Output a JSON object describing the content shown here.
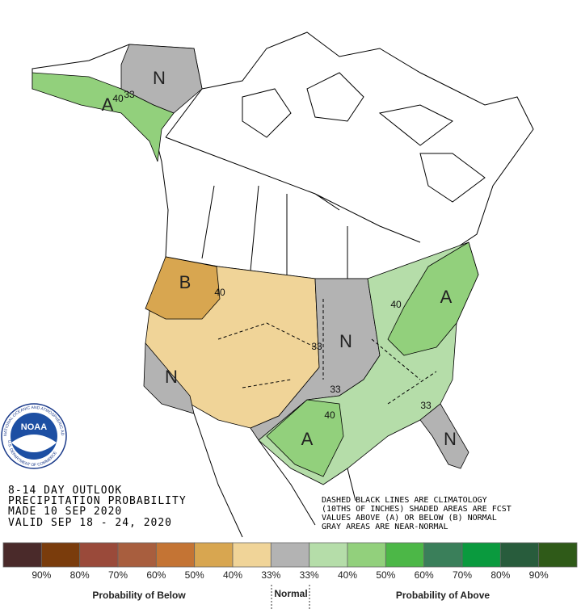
{
  "map": {
    "region_labels": [
      "N",
      "A",
      "B",
      "N",
      "N",
      "A",
      "N",
      "A"
    ],
    "contour_labels": [
      "33",
      "40",
      "40",
      "33",
      "40",
      "33",
      "40",
      "33"
    ]
  },
  "logo": {
    "name": "NOAA",
    "ring_top": "NATIONAL OCEANIC AND ATMOSPHERIC ADMINISTRATION",
    "ring_bottom": "U.S. DEPARTMENT OF COMMERCE"
  },
  "outlook": {
    "lines": [
      "8-14 DAY OUTLOOK",
      "PRECIPITATION PROBABILITY",
      "MADE  10 SEP 2020",
      "VALID  SEP 18 - 24, 2020"
    ]
  },
  "notes": [
    "DASHED BLACK LINES ARE CLIMATOLOGY",
    "(10THS OF INCHES) SHADED AREAS ARE FCST",
    "VALUES ABOVE (A) OR BELOW (B) NORMAL",
    "GRAY AREAS ARE NEAR-NORMAL"
  ],
  "legend": {
    "colors": [
      "#4a2a2a",
      "#7a3c0c",
      "#9a4a3a",
      "#a85e3e",
      "#c47434",
      "#d8a650",
      "#f0d498",
      "#b3b3b3",
      "#b5dda9",
      "#92d07c",
      "#4cb747",
      "#3a7f5a",
      "#0a9a3e",
      "#285c3c",
      "#2f5a18"
    ],
    "labels": [
      "90%",
      "80%",
      "70%",
      "60%",
      "50%",
      "40%",
      "33%",
      "33%",
      "40%",
      "50%",
      "60%",
      "70%",
      "80%",
      "90%"
    ],
    "below_title": "Probability of Below",
    "normal_title": "Normal",
    "above_title": "Probability of Above"
  }
}
